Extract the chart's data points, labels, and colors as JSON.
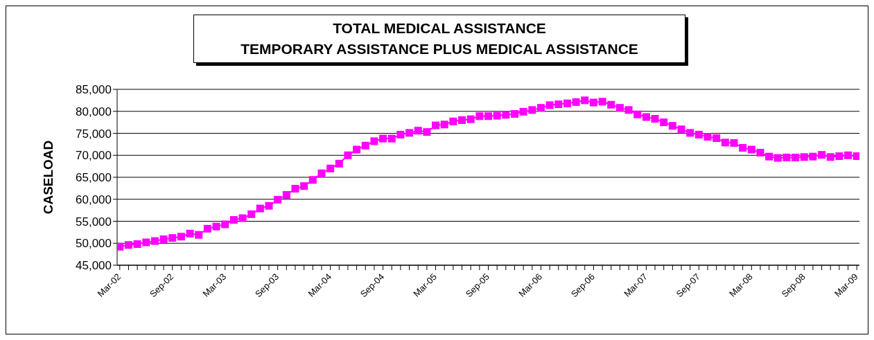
{
  "chart_data": {
    "type": "line",
    "title": "TOTAL MEDICAL ASSISTANCE\nTEMPORARY ASSISTANCE PLUS MEDICAL ASSISTANCE",
    "ylabel": "CASELOAD",
    "categories": [
      "Mar-02",
      null,
      null,
      null,
      null,
      null,
      "Sep-02",
      null,
      null,
      null,
      null,
      null,
      "Mar-03",
      null,
      null,
      null,
      null,
      null,
      "Sep-03",
      null,
      null,
      null,
      null,
      null,
      "Mar-04",
      null,
      null,
      null,
      null,
      null,
      "Sep-04",
      null,
      null,
      null,
      null,
      null,
      "Mar-05",
      null,
      null,
      null,
      null,
      null,
      "Sep-05",
      null,
      null,
      null,
      null,
      null,
      "Mar-06",
      null,
      null,
      null,
      null,
      null,
      "Sep-06",
      null,
      null,
      null,
      null,
      null,
      "Mar-07",
      null,
      null,
      null,
      null,
      null,
      "Sep-07",
      null,
      null,
      null,
      null,
      null,
      "Mar-08",
      null,
      null,
      null,
      null,
      null,
      "Sep-08",
      null,
      null,
      null,
      null,
      null,
      "Mar-09"
    ],
    "series": [
      {
        "color": "#ff00ff",
        "values": [
          49200,
          49600,
          49800,
          50200,
          50500,
          50900,
          51200,
          51500,
          52200,
          51900,
          53300,
          53800,
          54300,
          55300,
          55700,
          56600,
          57900,
          58500,
          59900,
          61000,
          62400,
          63000,
          64400,
          65900,
          67000,
          68100,
          70000,
          71300,
          72200,
          73200,
          73800,
          73800,
          74700,
          75100,
          75600,
          75300,
          76800,
          77000,
          77700,
          78000,
          78200,
          78900,
          78900,
          79000,
          79200,
          79400,
          79900,
          80300,
          80800,
          81400,
          81600,
          81800,
          82100,
          82500,
          82000,
          82200,
          81500,
          80800,
          80300,
          79300,
          78700,
          78300,
          77500,
          76700,
          75900,
          75100,
          74700,
          74200,
          73900,
          72900,
          72800,
          71700,
          71300,
          70600,
          69700,
          69400,
          69500,
          69500,
          69600,
          69700,
          70100,
          69600,
          69800,
          70000,
          69800
        ]
      }
    ],
    "ylim": [
      45000,
      85000
    ],
    "yticks": [
      {
        "value": 45000,
        "label": "45,000"
      },
      {
        "value": 50000,
        "label": "50,000"
      },
      {
        "value": 55000,
        "label": "55,000"
      },
      {
        "value": 60000,
        "label": "60,000"
      },
      {
        "value": 65000,
        "label": "65,000"
      },
      {
        "value": 70000,
        "label": "70,000"
      },
      {
        "value": 75000,
        "label": "75,000"
      },
      {
        "value": 80000,
        "label": "80,000"
      },
      {
        "value": 85000,
        "label": "85,000"
      }
    ],
    "grid": "y",
    "legend": false,
    "marker": "square",
    "line_style": "solid"
  }
}
